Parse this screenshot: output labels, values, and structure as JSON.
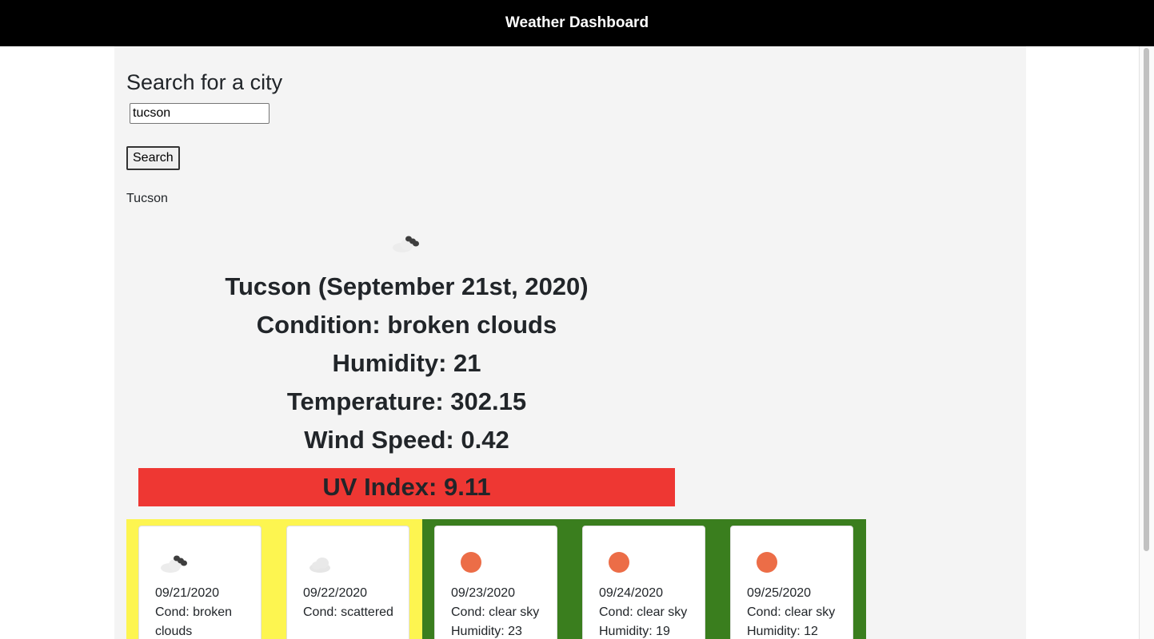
{
  "header": {
    "title": "Weather Dashboard"
  },
  "search": {
    "heading": "Search for a city",
    "input_value": "tucson",
    "button_label": "Search",
    "history": [
      "Tucson"
    ]
  },
  "current": {
    "icon": "broken-clouds-icon",
    "title": "Tucson (September 21st, 2020)",
    "condition": "Condition: broken clouds",
    "humidity": "Humidity: 21",
    "temperature": "Temperature: 302.15",
    "wind": "Wind Speed: 0.42",
    "uv": "UV Index: 9.11",
    "uv_color": "#ee3733"
  },
  "forecast": [
    {
      "date": "09/21/2020",
      "cond": "Cond: broken clouds",
      "humidity": "",
      "icon": "broken-clouds-icon",
      "bg": "#fdf550"
    },
    {
      "date": "09/22/2020",
      "cond": "Cond: scattered",
      "humidity": "",
      "icon": "scattered-clouds-icon",
      "bg": "#fdf550"
    },
    {
      "date": "09/23/2020",
      "cond": "Cond: clear sky",
      "humidity": "Humidity: 23",
      "icon": "clear-sky-icon",
      "bg": "#3a7e1e"
    },
    {
      "date": "09/24/2020",
      "cond": "Cond: clear sky",
      "humidity": "Humidity: 19",
      "icon": "clear-sky-icon",
      "bg": "#3a7e1e"
    },
    {
      "date": "09/25/2020",
      "cond": "Cond: clear sky",
      "humidity": "Humidity: 12",
      "icon": "clear-sky-icon",
      "bg": "#3a7e1e"
    }
  ]
}
